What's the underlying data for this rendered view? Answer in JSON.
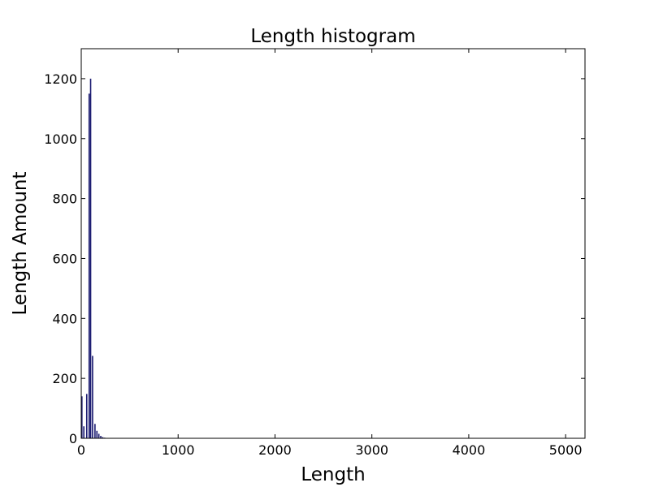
{
  "chart_data": {
    "type": "bar",
    "title": "Length histogram",
    "xlabel": "Length",
    "ylabel": "Length Amount",
    "xlim": [
      0,
      5200
    ],
    "ylim": [
      0,
      1300
    ],
    "xticks": [
      0,
      1000,
      2000,
      3000,
      4000,
      5000
    ],
    "yticks": [
      0,
      200,
      400,
      600,
      800,
      1000,
      1200
    ],
    "grid": false,
    "bar_color": "#191970",
    "bins": [
      {
        "x": 0,
        "value": 140
      },
      {
        "x": 20,
        "value": 40
      },
      {
        "x": 50,
        "value": 148
      },
      {
        "x": 75,
        "value": 1150
      },
      {
        "x": 90,
        "value": 1200
      },
      {
        "x": 110,
        "value": 275
      },
      {
        "x": 135,
        "value": 48
      },
      {
        "x": 155,
        "value": 25
      },
      {
        "x": 175,
        "value": 15
      },
      {
        "x": 195,
        "value": 8
      },
      {
        "x": 215,
        "value": 4
      },
      {
        "x": 235,
        "value": 2
      }
    ]
  }
}
